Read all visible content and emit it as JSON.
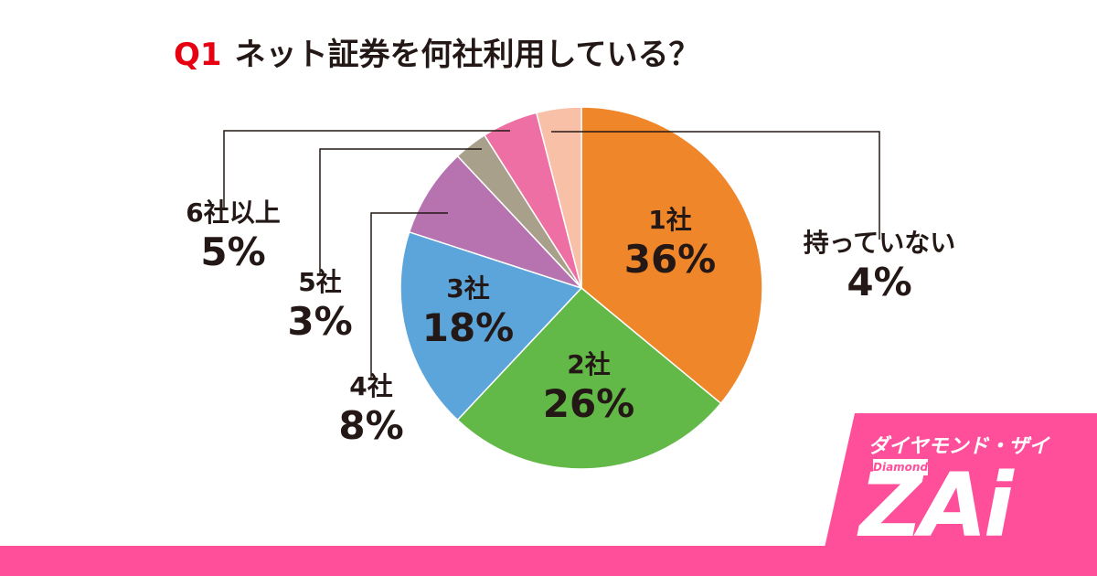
{
  "title": {
    "prefix": "Q1",
    "text": "ネット証券を何社利用している？"
  },
  "brand": {
    "japanese": "ダイヤモンド・ザイ",
    "english": "Diamond",
    "logo": "ZAi",
    "color": "#ff4f9a"
  },
  "chart_data": {
    "type": "pie",
    "start": "12 o'clock, clockwise",
    "slices": [
      {
        "label": "1社",
        "value": 36,
        "display": "36%",
        "color": "#f0862a"
      },
      {
        "label": "2社",
        "value": 26,
        "display": "26%",
        "color": "#62b947"
      },
      {
        "label": "3社",
        "value": 18,
        "display": "18%",
        "color": "#5ba5da"
      },
      {
        "label": "4社",
        "value": 8,
        "display": "8%",
        "color": "#b673b0"
      },
      {
        "label": "5社",
        "value": 3,
        "display": "3%",
        "color": "#a8a08a"
      },
      {
        "label": "6社以上",
        "value": 5,
        "display": "5%",
        "color": "#ee6fa3"
      },
      {
        "label": "持っていない",
        "value": 4,
        "display": "4%",
        "color": "#f9c0a8"
      }
    ]
  }
}
